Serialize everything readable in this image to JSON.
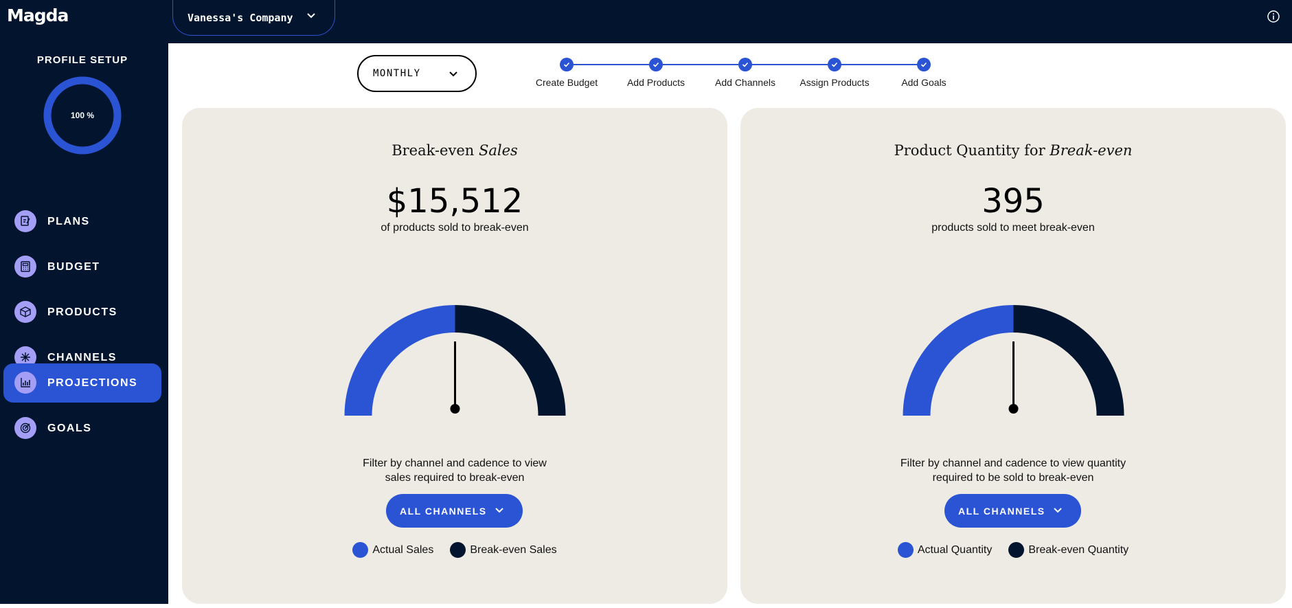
{
  "app": {
    "logo": "Magda",
    "company": "Vanessa's Company"
  },
  "sidebar": {
    "profile_title": "PROFILE SETUP",
    "profile_progress_label": "100 %",
    "profile_progress": 100,
    "items": [
      {
        "label": "PLANS",
        "icon": "plans-icon",
        "active": false
      },
      {
        "label": "BUDGET",
        "icon": "budget-icon",
        "active": false
      },
      {
        "label": "PRODUCTS",
        "icon": "products-icon",
        "active": false
      },
      {
        "label": "CHANNELS",
        "icon": "channels-icon",
        "active": false
      },
      {
        "label": "PROJECTIONS",
        "icon": "projections-icon",
        "active": true
      },
      {
        "label": "GOALS",
        "icon": "goals-icon",
        "active": false
      }
    ]
  },
  "cadence": {
    "value": "MONTHLY"
  },
  "steps": [
    {
      "label": "Create Budget",
      "done": true
    },
    {
      "label": "Add Products",
      "done": true
    },
    {
      "label": "Add Channels",
      "done": true
    },
    {
      "label": "Assign Products",
      "done": true
    },
    {
      "label": "Add Goals",
      "done": true
    }
  ],
  "cards": {
    "sales": {
      "title_plain": "Break-even ",
      "title_italic": "Sales",
      "metric": "$15,512",
      "metric_sub": "of products sold to break-even",
      "filter_line1": "Filter by channel and cadence to view",
      "filter_line2": "sales required to break-even",
      "channels_label": "ALL CHANNELS",
      "legend_actual": "Actual Sales",
      "legend_breakeven": "Break-even Sales",
      "actual_fraction": 0.5
    },
    "quantity": {
      "title_plain": "Product Quantity for ",
      "title_italic": "Break-even",
      "metric": "395",
      "metric_sub": "products sold to meet break-even",
      "filter_line1": "Filter by channel and cadence to view quantity",
      "filter_line2": "required to be sold to break-even",
      "channels_label": "ALL CHANNELS",
      "legend_actual": "Actual Quantity",
      "legend_breakeven": "Break-even Quantity",
      "actual_fraction": 0.5
    }
  },
  "colors": {
    "navy": "#02142e",
    "accent": "#2b54d4",
    "lavender": "#a59ef7",
    "card_bg": "#eeebe4"
  }
}
